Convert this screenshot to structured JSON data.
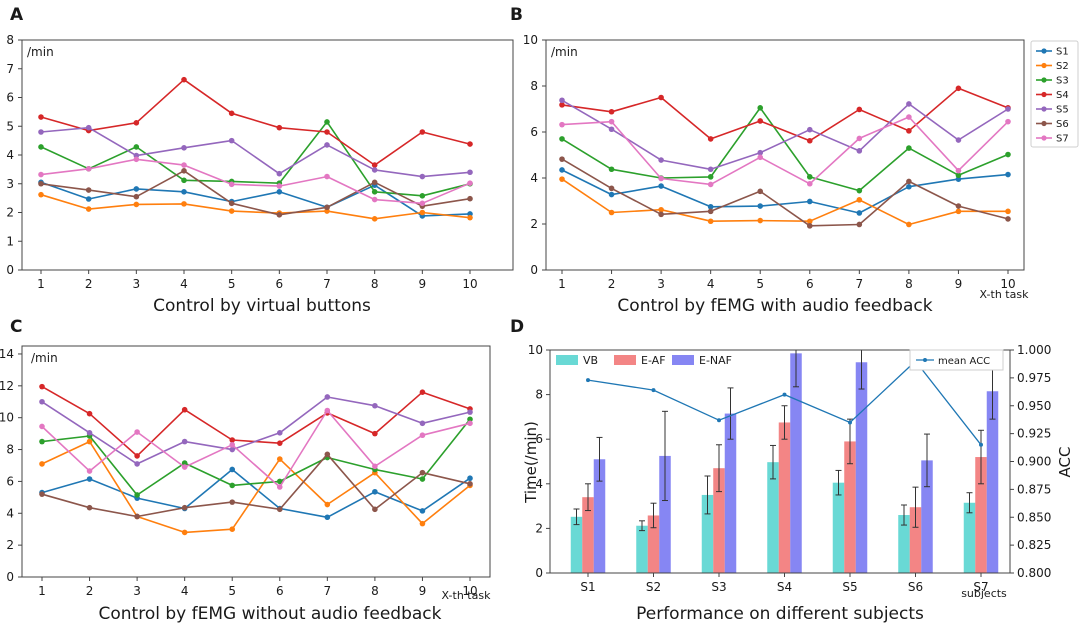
{
  "chart_data": [
    {
      "id": "A",
      "type": "line",
      "panel_label": "A",
      "unit_label": "/min",
      "caption": "Control by  virtual buttons",
      "x": [
        1,
        2,
        3,
        4,
        5,
        6,
        7,
        8,
        9,
        10
      ],
      "ylim": [
        0,
        8
      ],
      "yticks": [
        0,
        1,
        2,
        3,
        4,
        5,
        6,
        7,
        8
      ],
      "series": [
        {
          "name": "S1",
          "color": "#1f77b4",
          "values": [
            3.05,
            2.47,
            2.82,
            2.72,
            2.38,
            2.72,
            2.18,
            2.95,
            1.88,
            1.95
          ]
        },
        {
          "name": "S2",
          "color": "#ff7f0e",
          "values": [
            2.62,
            2.12,
            2.28,
            2.3,
            2.05,
            1.98,
            2.05,
            1.78,
            2.0,
            1.82
          ]
        },
        {
          "name": "S3",
          "color": "#2ca02c",
          "values": [
            4.28,
            3.52,
            4.28,
            3.12,
            3.08,
            3.02,
            5.15,
            2.72,
            2.58,
            3.0
          ]
        },
        {
          "name": "S4",
          "color": "#d62728",
          "values": [
            5.32,
            4.85,
            5.12,
            6.62,
            5.45,
            4.95,
            4.8,
            3.65,
            4.8,
            4.38
          ]
        },
        {
          "name": "S5",
          "color": "#9467bd",
          "values": [
            4.8,
            4.95,
            3.98,
            4.25,
            4.5,
            3.35,
            4.35,
            3.48,
            3.25,
            3.4
          ]
        },
        {
          "name": "S6",
          "color": "#8c564b",
          "values": [
            3.0,
            2.78,
            2.55,
            3.45,
            2.32,
            1.92,
            2.18,
            3.05,
            2.22,
            2.48
          ]
        },
        {
          "name": "S7",
          "color": "#e377c2",
          "values": [
            3.32,
            3.52,
            3.85,
            3.65,
            2.98,
            2.92,
            3.25,
            2.45,
            2.32,
            3.02
          ]
        }
      ]
    },
    {
      "id": "B",
      "type": "line",
      "panel_label": "B",
      "unit_label": "/min",
      "caption": "Control by  fEMG with audio feedback",
      "x": [
        1,
        2,
        3,
        4,
        5,
        6,
        7,
        8,
        9,
        10
      ],
      "x_axis_note": "X-th task",
      "ylim": [
        0,
        10
      ],
      "yticks": [
        0,
        2,
        4,
        6,
        8,
        10
      ],
      "series": [
        {
          "name": "S1",
          "color": "#1f77b4",
          "values": [
            4.35,
            3.28,
            3.65,
            2.75,
            2.78,
            2.98,
            2.48,
            3.62,
            3.95,
            4.15
          ]
        },
        {
          "name": "S2",
          "color": "#ff7f0e",
          "values": [
            3.95,
            2.5,
            2.62,
            2.12,
            2.15,
            2.12,
            3.05,
            1.98,
            2.55,
            2.55
          ]
        },
        {
          "name": "S3",
          "color": "#2ca02c",
          "values": [
            5.7,
            4.38,
            4.0,
            4.05,
            7.05,
            4.05,
            3.45,
            5.3,
            4.12,
            5.02
          ]
        },
        {
          "name": "S4",
          "color": "#d62728",
          "values": [
            7.18,
            6.88,
            7.5,
            5.7,
            6.48,
            5.62,
            6.98,
            6.05,
            7.9,
            7.05
          ]
        },
        {
          "name": "S5",
          "color": "#9467bd",
          "values": [
            7.38,
            6.12,
            4.78,
            4.38,
            5.1,
            6.1,
            5.18,
            7.22,
            5.65,
            7.0
          ]
        },
        {
          "name": "S6",
          "color": "#8c564b",
          "values": [
            4.82,
            3.55,
            2.42,
            2.55,
            3.42,
            1.92,
            1.98,
            3.85,
            2.78,
            2.22
          ]
        },
        {
          "name": "S7",
          "color": "#e377c2",
          "values": [
            6.32,
            6.45,
            3.98,
            3.72,
            4.9,
            3.75,
            5.72,
            6.65,
            4.32,
            6.45
          ]
        }
      ],
      "legend": [
        "S1",
        "S2",
        "S3",
        "S4",
        "S5",
        "S6",
        "S7"
      ]
    },
    {
      "id": "C",
      "type": "line",
      "panel_label": "C",
      "unit_label": "/min",
      "caption": "Control by  fEMG without audio feedback",
      "x": [
        1,
        2,
        3,
        4,
        5,
        6,
        7,
        8,
        9,
        10
      ],
      "x_axis_note": "X-th task",
      "ylim": [
        0,
        14.5
      ],
      "yticks": [
        0,
        2,
        4,
        6,
        8,
        10,
        12,
        14
      ],
      "series": [
        {
          "name": "S1",
          "color": "#1f77b4",
          "values": [
            5.3,
            6.15,
            4.95,
            4.3,
            6.75,
            4.3,
            3.75,
            5.35,
            4.15,
            6.2
          ]
        },
        {
          "name": "S2",
          "color": "#ff7f0e",
          "values": [
            7.1,
            8.5,
            3.8,
            2.8,
            3.0,
            7.4,
            4.55,
            6.55,
            3.35,
            5.75
          ]
        },
        {
          "name": "S3",
          "color": "#2ca02c",
          "values": [
            8.5,
            8.85,
            5.15,
            7.15,
            5.75,
            6.0,
            7.5,
            6.75,
            6.15,
            9.9
          ]
        },
        {
          "name": "S4",
          "color": "#d62728",
          "values": [
            11.95,
            10.25,
            7.6,
            10.5,
            8.6,
            8.4,
            10.3,
            9.0,
            11.6,
            10.55
          ]
        },
        {
          "name": "S5",
          "color": "#9467bd",
          "values": [
            11.0,
            9.05,
            7.1,
            8.5,
            8.0,
            9.05,
            11.3,
            10.75,
            9.65,
            10.35
          ]
        },
        {
          "name": "S6",
          "color": "#8c564b",
          "values": [
            5.2,
            4.35,
            3.8,
            4.35,
            4.7,
            4.25,
            7.7,
            4.25,
            6.55,
            5.85
          ]
        },
        {
          "name": "S7",
          "color": "#e377c2",
          "values": [
            9.45,
            6.65,
            9.1,
            6.9,
            8.3,
            5.65,
            10.45,
            6.95,
            8.9,
            9.65
          ]
        }
      ]
    },
    {
      "id": "D",
      "type": "bar",
      "panel_label": "D",
      "caption": "Performance on different subjects",
      "categories": [
        "S1",
        "S2",
        "S3",
        "S4",
        "S5",
        "S6",
        "S7"
      ],
      "x_axis_note": "subjects",
      "ylabel": "Time(/min)",
      "ylabel_right": "ACC",
      "ylim": [
        0,
        10
      ],
      "yticks": [
        0,
        2,
        4,
        6,
        8,
        10
      ],
      "ylim_right": [
        0.8,
        1.0
      ],
      "yticks_right": [
        "0.800",
        "0.825",
        "0.850",
        "0.875",
        "0.900",
        "0.925",
        "0.950",
        "0.975",
        "1.000"
      ],
      "series": [
        {
          "name": "VB",
          "color": "#48d1cc",
          "values": [
            2.52,
            2.12,
            3.5,
            4.97,
            4.05,
            2.6,
            3.15
          ],
          "errors": [
            0.35,
            0.22,
            0.85,
            0.75,
            0.55,
            0.45,
            0.45
          ]
        },
        {
          "name": "E-AF",
          "color": "#f06a6a",
          "values": [
            3.4,
            2.58,
            4.7,
            6.75,
            5.9,
            2.95,
            5.2
          ],
          "errors": [
            0.6,
            0.55,
            1.05,
            0.75,
            1.0,
            0.9,
            1.2
          ]
        },
        {
          "name": "E-NAF",
          "color": "#6b6bf0",
          "values": [
            5.1,
            5.25,
            7.15,
            9.85,
            9.45,
            5.05,
            8.15
          ],
          "errors": [
            0.98,
            2.0,
            1.15,
            1.5,
            1.2,
            1.18,
            1.25
          ]
        }
      ],
      "line_series": {
        "name": "mean ACC",
        "color": "#1f77b4",
        "values": [
          0.973,
          0.964,
          0.937,
          0.96,
          0.935,
          0.99,
          0.915
        ]
      }
    }
  ]
}
